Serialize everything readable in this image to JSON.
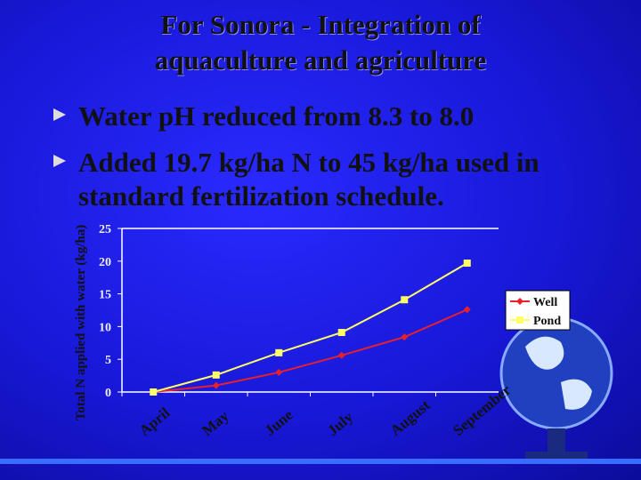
{
  "slide": {
    "title": "For Sonora - Integration of aquaculture and agriculture",
    "bullets": [
      "Water pH reduced from 8.3 to 8.0",
      "Added 19.7 kg/ha N to 45 kg/ha used in standard fertilization schedule."
    ]
  },
  "chart_data": {
    "type": "line",
    "y_label": "Total N applied with water (kg/ha)",
    "categories": [
      "April",
      "May",
      "June",
      "July",
      "August",
      "September"
    ],
    "series": [
      {
        "name": "Well",
        "color": "#e8202a",
        "marker": "diamond",
        "values": [
          0,
          1,
          3,
          5.6,
          8.4,
          12.6
        ]
      },
      {
        "name": "Pond",
        "color": "#ffff66",
        "marker": "square",
        "values": [
          0,
          2.6,
          6,
          9.1,
          14.1,
          19.7
        ]
      }
    ],
    "ylim": [
      0,
      25
    ],
    "yticks": [
      0,
      5,
      10,
      15,
      20,
      25
    ],
    "legend": "right"
  }
}
